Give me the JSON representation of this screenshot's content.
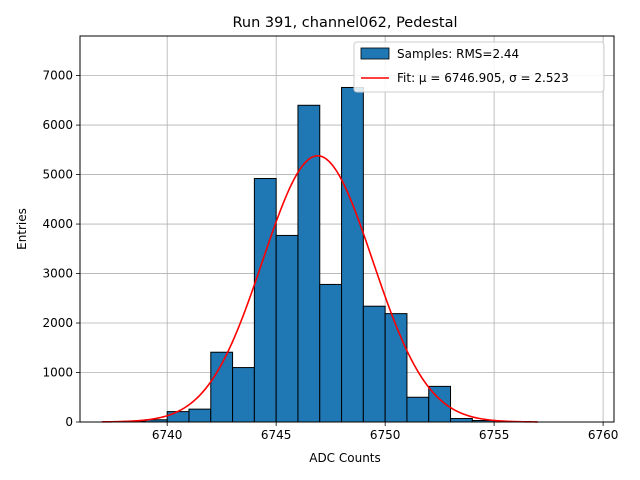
{
  "chart_data": {
    "type": "bar",
    "title": "Run 391, channel062, Pedestal",
    "xlabel": "ADC Counts",
    "ylabel": "Entries",
    "xlim": [
      6736,
      6760.5
    ],
    "ylim": [
      0,
      7800
    ],
    "xticks": [
      6740,
      6745,
      6750,
      6755,
      6760
    ],
    "yticks": [
      0,
      1000,
      2000,
      3000,
      4000,
      5000,
      6000,
      7000
    ],
    "grid": true,
    "legend_position": "top-right",
    "bar_color": "#1f77b4",
    "fit_color": "#ff0000",
    "histogram": {
      "name": "Samples: RMS=2.44",
      "bin_width": 1,
      "bin_edges_start": [
        6738,
        6739,
        6740,
        6741,
        6742,
        6743,
        6744,
        6745,
        6746,
        6747,
        6748,
        6749,
        6750,
        6751,
        6752,
        6753,
        6754,
        6755
      ],
      "values": [
        15,
        45,
        210,
        260,
        1410,
        1100,
        4920,
        3770,
        6400,
        2780,
        6760,
        2340,
        2190,
        500,
        720,
        70,
        30,
        5
      ]
    },
    "fit": {
      "name": "Fit: μ = 6746.905, σ = 2.523",
      "mu": 6746.905,
      "sigma": 2.523,
      "amplitude": 5380,
      "x_range": [
        6737,
        6757
      ]
    }
  }
}
